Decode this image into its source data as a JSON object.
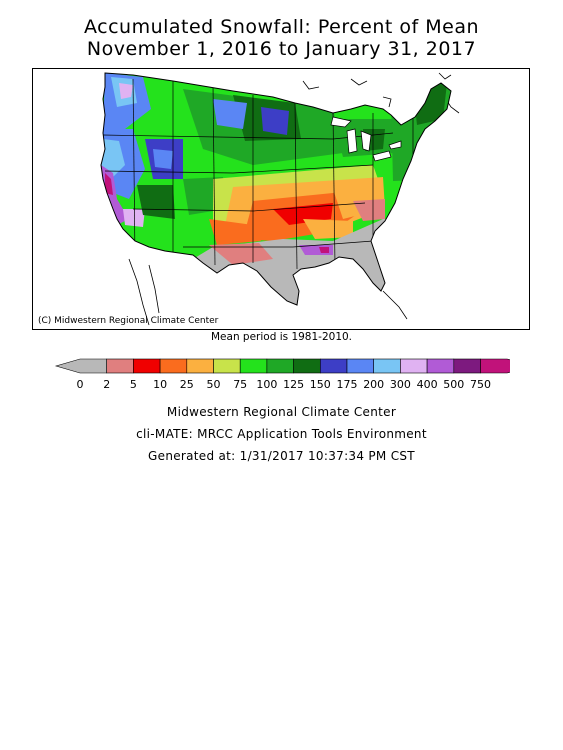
{
  "title": {
    "line1": "Accumulated Snowfall: Percent of Mean",
    "line2": "November 1, 2016 to January 31, 2017"
  },
  "map": {
    "copyright": "(C) Midwestern Regional Climate Center"
  },
  "mean_period": "Mean period is 1981-2010.",
  "legend": {
    "labels": [
      "0",
      "2",
      "5",
      "10",
      "25",
      "50",
      "75",
      "100",
      "125",
      "150",
      "175",
      "200",
      "300",
      "400",
      "500",
      "750"
    ],
    "colors": [
      "#b8b8b8",
      "#e07f7f",
      "#f00000",
      "#fa6c1e",
      "#fbb040",
      "#c8e34a",
      "#24e21c",
      "#1fa826",
      "#106d13",
      "#3d3ec6",
      "#5a86f4",
      "#79c5f4",
      "#e0b2f2",
      "#b15bd6",
      "#7d1a7f",
      "#c1127a"
    ]
  },
  "footer": {
    "line1": "Midwestern Regional Climate Center",
    "line2": "cli-MATE: MRCC Application Tools Environment",
    "line3": "Generated at: 1/31/2017 10:37:34 PM CST"
  }
}
